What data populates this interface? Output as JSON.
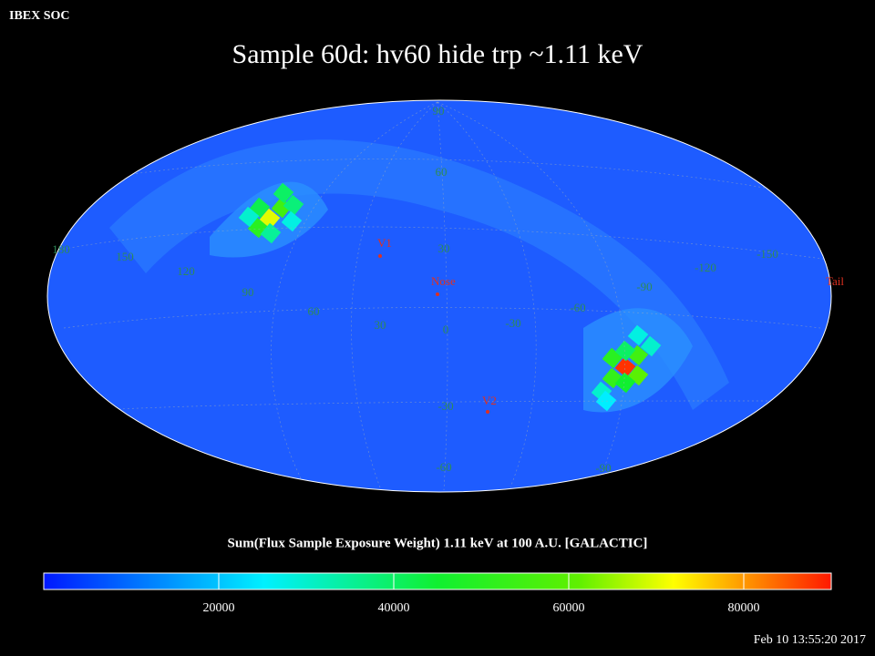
{
  "header": {
    "org": "IBEX SOC",
    "title": "Sample 60d: hv60 hide trp ~1.11 keV",
    "timestamp": "Feb 10 13:55:20 2017"
  },
  "map": {
    "latitude_labels": [
      "90",
      "60",
      "30",
      "0",
      "-30",
      "-60",
      "-90"
    ],
    "longitude_labels": [
      "180",
      "150",
      "120",
      "90",
      "60",
      "30",
      "-30",
      "-60",
      "-90",
      "-120",
      "-150"
    ],
    "markers": [
      "V1",
      "Nose",
      "V2",
      "Tail"
    ],
    "cell_values": [
      70000,
      55000,
      50000,
      40000,
      38000,
      42000,
      35000,
      30000,
      28000,
      88000,
      55000,
      52000,
      60000,
      50000,
      45000,
      40000,
      30000,
      30000,
      28000,
      25000
    ]
  },
  "colorbar": {
    "title": "Sum(Flux Sample Exposure Weight)  1.11 keV at 100 A.U. [GALACTIC]",
    "lim": [
      0,
      90000
    ],
    "ticks": [
      20000,
      40000,
      60000,
      80000
    ]
  }
}
